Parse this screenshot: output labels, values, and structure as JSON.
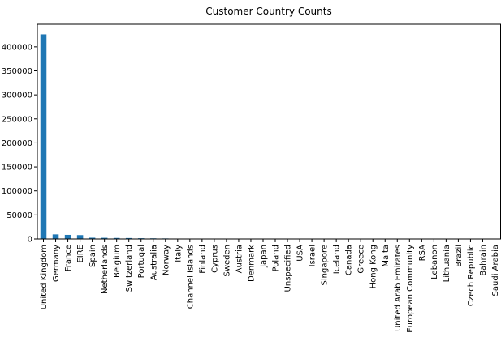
{
  "chart_data": {
    "type": "bar",
    "title": "Customer Country Counts",
    "xlabel": "",
    "ylabel": "",
    "ylim": [
      0,
      447000
    ],
    "yticks": [
      0,
      50000,
      100000,
      150000,
      200000,
      250000,
      300000,
      350000,
      400000
    ],
    "grid": false,
    "legend": "none",
    "bar_color": "#1f77b4",
    "categories": [
      "United Kingdom",
      "Germany",
      "France",
      "EIRE",
      "Spain",
      "Netherlands",
      "Belgium",
      "Switzerland",
      "Portugal",
      "Australia",
      "Norway",
      "Italy",
      "Channel Islands",
      "Finland",
      "Cyprus",
      "Sweden",
      "Austria",
      "Denmark",
      "Japan",
      "Poland",
      "Unspecified",
      "USA",
      "Israel",
      "Singapore",
      "Iceland",
      "Canada",
      "Greece",
      "Hong Kong",
      "Malta",
      "United Arab Emirates",
      "European Community",
      "RSA",
      "Lebanon",
      "Lithuania",
      "Brazil",
      "Czech Republic",
      "Bahrain",
      "Saudi Arabia"
    ],
    "values": [
      426000,
      9500,
      8500,
      8000,
      2600,
      2400,
      2100,
      1900,
      1500,
      1300,
      1100,
      800,
      760,
      700,
      620,
      480,
      400,
      390,
      360,
      340,
      240,
      290,
      250,
      230,
      180,
      150,
      150,
      110,
      130,
      70,
      60,
      60,
      45,
      35,
      32,
      30,
      17,
      10
    ]
  }
}
